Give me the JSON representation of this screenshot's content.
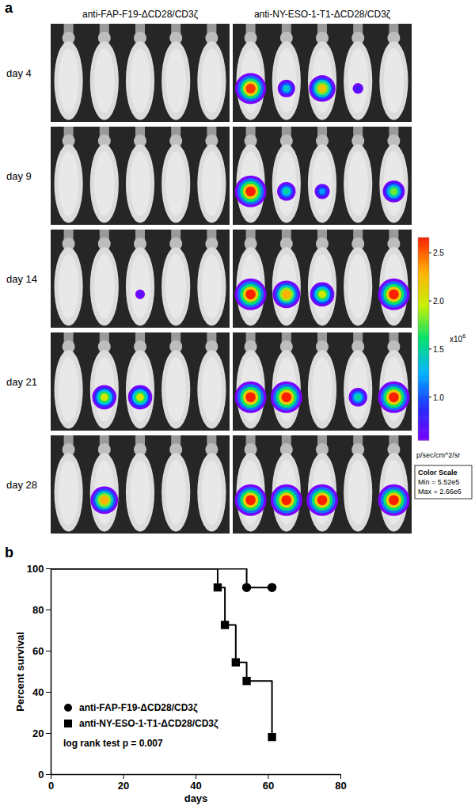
{
  "panel_a": {
    "label": "a",
    "columns": [
      "anti-FAP-F19-ΔCD28/CD3ζ",
      "anti-NY-ESO-1-T1-ΔCD28/CD3ζ"
    ],
    "days": [
      "day 4",
      "day 9",
      "day 14",
      "day 21",
      "day 28"
    ],
    "signal": [
      [
        [
          0,
          0,
          0,
          0,
          0
        ],
        [
          2.6,
          1.4,
          2.2,
          0.8,
          0
        ]
      ],
      [
        [
          0,
          0,
          0,
          0,
          0
        ],
        [
          2.66,
          1.5,
          1.2,
          0,
          1.8
        ]
      ],
      [
        [
          0,
          0,
          0.7,
          0,
          0
        ],
        [
          2.66,
          2.3,
          2.0,
          0,
          2.66
        ]
      ],
      [
        [
          0,
          2.0,
          2.0,
          0,
          0
        ],
        [
          2.66,
          2.66,
          0,
          1.5,
          2.66
        ]
      ],
      [
        [
          0,
          2.3,
          0,
          0,
          0
        ],
        [
          2.66,
          2.66,
          2.66,
          0,
          2.66
        ]
      ]
    ],
    "colorbar": {
      "range": [
        0.552,
        2.66
      ],
      "ticks": [
        {
          "value": 1,
          "label": "1.0"
        },
        1.5,
        {
          "value": 2,
          "label": "2.0"
        },
        2.5
      ],
      "multiplier": "x10",
      "exponent": "6",
      "unit": "p/sec/cm^2/sr",
      "box": [
        "Color Scale",
        "Min = 5.52e5",
        "Max = 2.66e6"
      ]
    }
  },
  "panel_b": {
    "label": "b"
  },
  "chart_data": {
    "type": "line",
    "x_label": "days",
    "y_label": "Percent survival",
    "xlim": [
      0,
      80
    ],
    "xticks": [
      0,
      20,
      40,
      60,
      80
    ],
    "ylim": [
      0,
      100
    ],
    "yticks": [
      0,
      20,
      40,
      60,
      80,
      100
    ],
    "annotation": "log rank test p = 0.007",
    "legend": "lower left",
    "series": [
      {
        "name": "anti-FAP-F19-ΔCD28/CD3ζ",
        "color": "#000000",
        "marker": "circle",
        "line_style": "step",
        "x": [
          0,
          54,
          61
        ],
        "values": [
          100,
          90.9,
          90.9
        ]
      },
      {
        "name": "anti-NY-ESO-1-T1-ΔCD28/CD3ζ",
        "color": "#000000",
        "marker": "square",
        "line_style": "step",
        "x": [
          0,
          46,
          48,
          51,
          54,
          61
        ],
        "values": [
          100,
          90.9,
          72.7,
          54.5,
          45.5,
          18.2
        ]
      }
    ]
  }
}
